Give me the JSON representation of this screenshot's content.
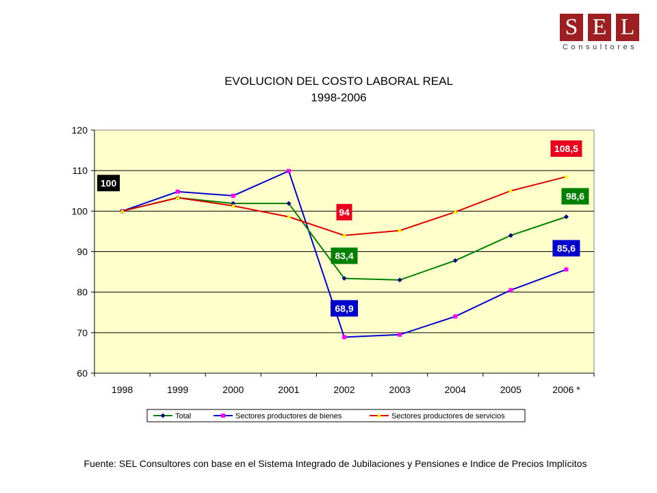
{
  "logo": {
    "letters": [
      "S",
      "E",
      "L"
    ],
    "subtitle": "Consultores",
    "color": "#9e1f22"
  },
  "footer": {
    "source": "Fuente: SEL Consultores con base en el Sistema Integrado de Jubilaciones y Pensiones e Indice de Precios Implícitos"
  },
  "chart_data": {
    "type": "line",
    "title": "EVOLUCION DEL COSTO LABORAL REAL",
    "subtitle": "1998-2006",
    "categories": [
      "1998",
      "1999",
      "2000",
      "2001",
      "2002",
      "2003",
      "2004",
      "2005",
      "2006 *"
    ],
    "ylim": [
      60,
      120
    ],
    "yticks": [
      "60",
      "70",
      "80",
      "90",
      "100",
      "110",
      "120"
    ],
    "grid": true,
    "plot_background": "#ffffcc",
    "legend_position": "bottom",
    "series": [
      {
        "name": "Total",
        "color": "#008000",
        "marker_color": "#000080",
        "marker": "diamond",
        "values": [
          100,
          103.3,
          101.9,
          101.9,
          83.4,
          83.0,
          87.8,
          94.0,
          98.6
        ]
      },
      {
        "name": "Sectores productores de bienes",
        "color": "#0000cc",
        "marker_color": "#ff00ff",
        "marker": "square",
        "values": [
          100,
          104.8,
          103.8,
          109.9,
          68.9,
          69.5,
          74.0,
          80.5,
          85.6
        ]
      },
      {
        "name": "Sectores productores de servicios",
        "color": "#dd0000",
        "marker_color": "#ffff00",
        "marker": "triangle",
        "values": [
          100,
          103.3,
          101.3,
          98.6,
          94.0,
          95.2,
          99.8,
          105.0,
          108.5
        ]
      }
    ],
    "annotations": [
      {
        "text": "100",
        "color": "#000000"
      },
      {
        "text": "94",
        "color": "#e8001c"
      },
      {
        "text": "83,4",
        "color": "#008000"
      },
      {
        "text": "68,9",
        "color": "#0000cc"
      },
      {
        "text": "108,5",
        "color": "#e8001c"
      },
      {
        "text": "98,6",
        "color": "#008000"
      },
      {
        "text": "85,6",
        "color": "#0000cc"
      }
    ]
  }
}
